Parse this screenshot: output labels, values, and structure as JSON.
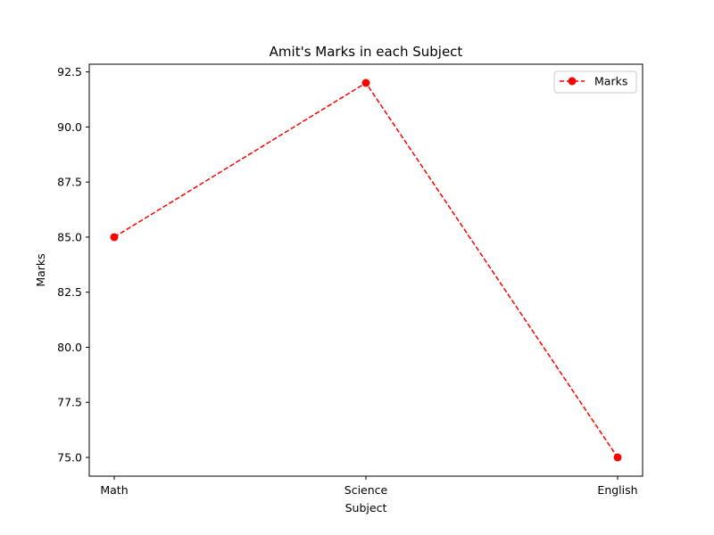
{
  "chart_data": {
    "type": "line",
    "title": "Amit's Marks in each Subject",
    "xlabel": "Subject",
    "ylabel": "Marks",
    "categories": [
      "Math",
      "Science",
      "English"
    ],
    "series": [
      {
        "name": "Marks",
        "values": [
          85,
          92,
          75
        ],
        "color": "#ff0000",
        "line_style": "dashed",
        "marker": "circle"
      }
    ],
    "ylim": [
      74.15,
      92.85
    ],
    "yticks": [
      "75.0",
      "77.5",
      "80.0",
      "82.5",
      "85.0",
      "87.5",
      "90.0",
      "92.5"
    ],
    "grid": false,
    "legend_position": "top-right"
  }
}
